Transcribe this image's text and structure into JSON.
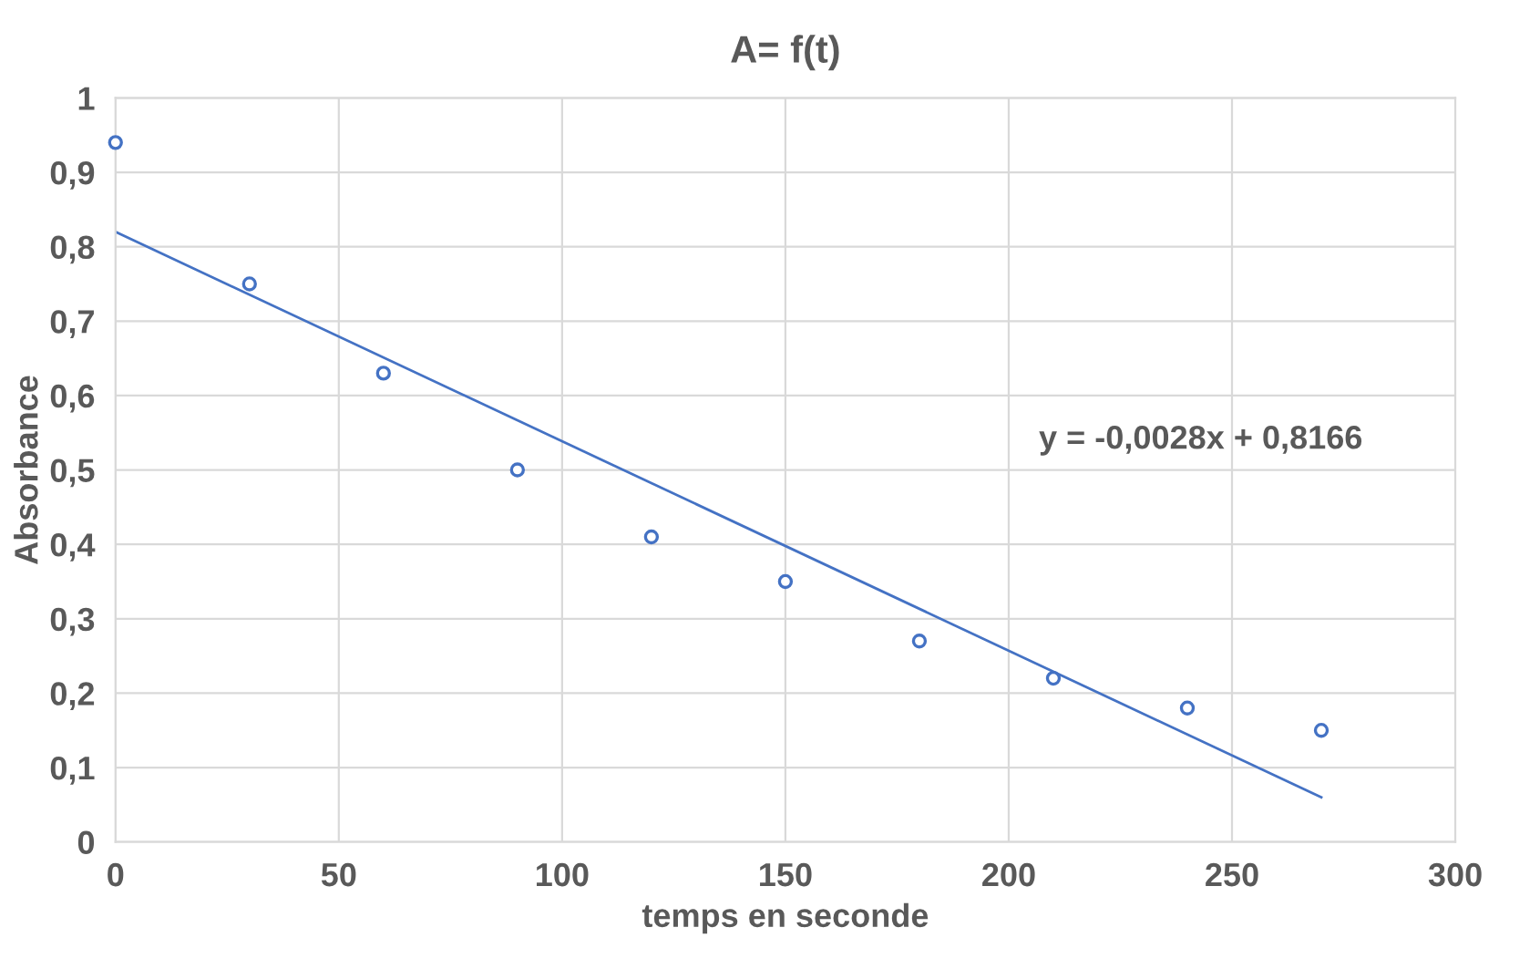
{
  "chart_data": {
    "type": "scatter",
    "title": "A= f(t)",
    "xlabel": "temps en seconde",
    "ylabel": "Absorbance",
    "series": [
      {
        "color": "#4472c4",
        "marker": "circle",
        "x": [
          0,
          30,
          60,
          90,
          120,
          150,
          180,
          210,
          240,
          270
        ],
        "values": [
          0.94,
          0.75,
          0.63,
          0.5,
          0.41,
          0.35,
          0.27,
          0.22,
          0.18,
          0.15
        ]
      },
      {
        "type": "line",
        "color": "#4472c4",
        "line_style": "solid",
        "x": [
          0,
          270
        ],
        "values": [
          0.82,
          0.06
        ]
      }
    ],
    "annotations": [
      "y = -0,0028x + 0,8166"
    ],
    "xlim": [
      0,
      300
    ],
    "xticks": [
      0,
      50,
      100,
      150,
      200,
      250,
      300
    ],
    "ylim": [
      0,
      1
    ],
    "yticks": [
      {
        "value": 0,
        "label": "0"
      },
      {
        "value": 0.1,
        "label": "0,1"
      },
      {
        "value": 0.2,
        "label": "0,2"
      },
      {
        "value": 0.3,
        "label": "0,3"
      },
      {
        "value": 0.4,
        "label": "0,4"
      },
      {
        "value": 0.5,
        "label": "0,5"
      },
      {
        "value": 0.6,
        "label": "0,6"
      },
      {
        "value": 0.7,
        "label": "0,7"
      },
      {
        "value": 0.8,
        "label": "0,8"
      },
      {
        "value": 0.9,
        "label": "0,9"
      },
      {
        "value": 1,
        "label": "1"
      }
    ],
    "grid": true,
    "legend": false
  }
}
